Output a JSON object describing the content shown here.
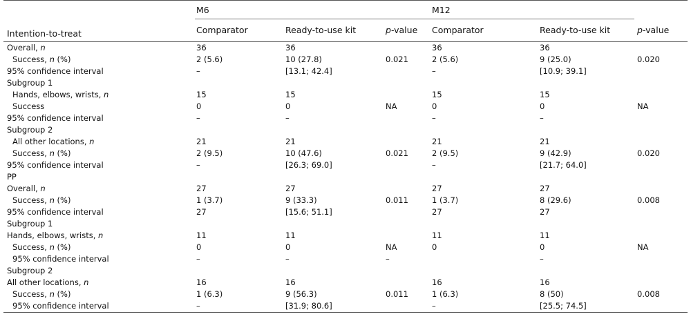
{
  "header": {
    "row_label": "Intention-to-treat",
    "group1": "M6",
    "group2": "M12",
    "col_comparator": "Comparator",
    "col_kit": "Ready-to-use kit",
    "col_p_prefix": "p",
    "col_p_suffix": "-value"
  },
  "rows": [
    {
      "label": "Overall, ",
      "italic": "n",
      "indent": false,
      "c1": "36",
      "k1": "36",
      "p1": "",
      "c2": "36",
      "k2": "36",
      "p2": ""
    },
    {
      "label": "Success, ",
      "italic": "n",
      "tail": " (%)",
      "indent": true,
      "c1": "2 (5.6)",
      "k1": "10 (27.8)",
      "p1": "0.021",
      "c2": "2 (5.6)",
      "k2": "9 (25.0)",
      "p2": "0.020"
    },
    {
      "label": "95% confidence interval",
      "indent": false,
      "c1": "–",
      "k1": "[13.1; 42.4]",
      "p1": "",
      "c2": "–",
      "k2": "[10.9; 39.1]",
      "p2": ""
    },
    {
      "label": "Subgroup 1",
      "indent": false,
      "c1": "",
      "k1": "",
      "p1": "",
      "c2": "",
      "k2": "",
      "p2": ""
    },
    {
      "label": "Hands, elbows, wrists, ",
      "italic": "n",
      "indent": true,
      "c1": "15",
      "k1": "15",
      "p1": "",
      "c2": "15",
      "k2": "15",
      "p2": ""
    },
    {
      "label": "Success",
      "indent": true,
      "c1": "0",
      "k1": "0",
      "p1": "NA",
      "c2": "0",
      "k2": "0",
      "p2": "NA"
    },
    {
      "label": "95% confidence interval",
      "indent": false,
      "c1": "–",
      "k1": "–",
      "p1": "",
      "c2": "–",
      "k2": "–",
      "p2": ""
    },
    {
      "label": "Subgroup 2",
      "indent": false,
      "c1": "",
      "k1": "",
      "p1": "",
      "c2": "",
      "k2": "",
      "p2": ""
    },
    {
      "label": "All other locations, ",
      "italic": "n",
      "indent": true,
      "c1": "21",
      "k1": "21",
      "p1": "",
      "c2": "21",
      "k2": "21",
      "p2": ""
    },
    {
      "label": "Success, ",
      "italic": "n",
      "tail": " (%)",
      "indent": true,
      "c1": "2 (9.5)",
      "k1": "10 (47.6)",
      "p1": "0.021",
      "c2": "2 (9.5)",
      "k2": "9 (42.9)",
      "p2": "0.020"
    },
    {
      "label": "95% confidence interval",
      "indent": false,
      "c1": "–",
      "k1": "[26.3; 69.0]",
      "p1": "",
      "c2": "–",
      "k2": "[21.7; 64.0]",
      "p2": ""
    },
    {
      "label": "PP",
      "indent": false,
      "c1": "",
      "k1": "",
      "p1": "",
      "c2": "",
      "k2": "",
      "p2": ""
    },
    {
      "label": "Overall, ",
      "italic": "n",
      "indent": false,
      "c1": "27",
      "k1": "27",
      "p1": "",
      "c2": "27",
      "k2": "27",
      "p2": ""
    },
    {
      "label": "Success, ",
      "italic": "n",
      "tail": " (%)",
      "indent": true,
      "c1": "1 (3.7)",
      "k1": "9 (33.3)",
      "p1": "0.011",
      "c2": "1 (3.7)",
      "k2": "8 (29.6)",
      "p2": "0.008"
    },
    {
      "label": "95% confidence interval",
      "indent": false,
      "c1": "27",
      "k1": "[15.6; 51.1]",
      "p1": "",
      "c2": "27",
      "k2": "27",
      "p2": ""
    },
    {
      "label": "Subgroup 1",
      "indent": false,
      "c1": "",
      "k1": "",
      "p1": "",
      "c2": "",
      "k2": "",
      "p2": ""
    },
    {
      "label": "Hands, elbows, wrists, ",
      "italic": "n",
      "indent": false,
      "c1": "11",
      "k1": "11",
      "p1": "",
      "c2": "11",
      "k2": "11",
      "p2": ""
    },
    {
      "label": "Success, ",
      "italic": "n",
      "tail": " (%)",
      "indent": true,
      "c1": "0",
      "k1": "0",
      "p1": "NA",
      "c2": "0",
      "k2": "0",
      "p2": "NA"
    },
    {
      "label": "95% confidence interval",
      "indent": true,
      "c1": "–",
      "k1": "–",
      "p1": "–",
      "c2": "",
      "k2": "–",
      "p2": ""
    },
    {
      "label": "Subgroup 2",
      "indent": false,
      "c1": "",
      "k1": "",
      "p1": "",
      "c2": "",
      "k2": "",
      "p2": ""
    },
    {
      "label": "All other locations, ",
      "italic": "n",
      "indent": false,
      "c1": "16",
      "k1": "16",
      "p1": "",
      "c2": "16",
      "k2": "16",
      "p2": ""
    },
    {
      "label": "Success, ",
      "italic": "n",
      "tail": " (%)",
      "indent": true,
      "c1": "1 (6.3)",
      "k1": "9 (56.3)",
      "p1": "0.011",
      "c2": "1 (6.3)",
      "k2": "8 (50)",
      "p2": "0.008"
    },
    {
      "label": "95% confidence interval",
      "indent": true,
      "c1": "–",
      "k1": "[31.9; 80.6]",
      "p1": "",
      "c2": "–",
      "k2": "[25.5; 74.5]",
      "p2": ""
    }
  ]
}
